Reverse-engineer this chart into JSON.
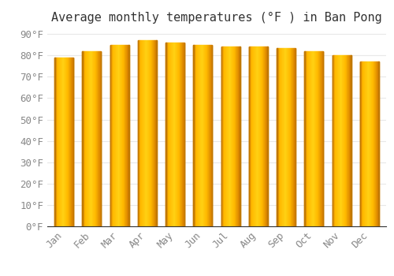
{
  "title": "Average monthly temperatures (°F ) in Ban Pong",
  "months": [
    "Jan",
    "Feb",
    "Mar",
    "Apr",
    "May",
    "Jun",
    "Jul",
    "Aug",
    "Sep",
    "Oct",
    "Nov",
    "Dec"
  ],
  "values": [
    79,
    82,
    85,
    87,
    86,
    85,
    84,
    84,
    83.5,
    82,
    80,
    77
  ],
  "bar_color_light": "#FFD060",
  "bar_color_mid": "#FFB820",
  "bar_color_dark": "#E89010",
  "background_color": "#FFFFFF",
  "grid_color": "#E8E8E8",
  "yticks": [
    0,
    10,
    20,
    30,
    40,
    50,
    60,
    70,
    80,
    90
  ],
  "ylim": [
    0,
    93
  ],
  "title_fontsize": 11,
  "tick_fontsize": 9,
  "font_family": "monospace"
}
